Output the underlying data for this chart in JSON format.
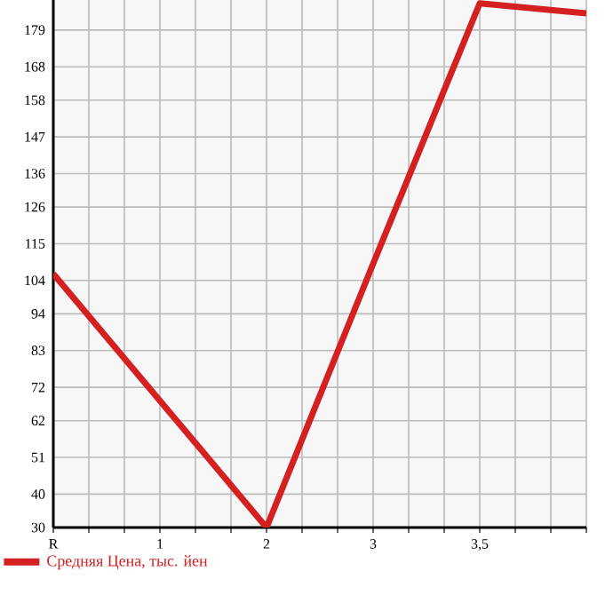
{
  "chart_data": {
    "type": "line",
    "categories": [
      "R",
      "1",
      "2",
      "3",
      "3,5",
      null
    ],
    "series": [
      {
        "name": "Средняя Цена, тыс. йен",
        "color": "#d42020",
        "values": [
          106,
          68,
          30,
          109,
          187,
          184
        ]
      }
    ],
    "ylim": [
      30,
      188
    ],
    "yticks": [
      30,
      40,
      51,
      62,
      72,
      83,
      94,
      104,
      115,
      126,
      136,
      147,
      158,
      168,
      179
    ],
    "grid": true,
    "legend": "bottom left",
    "marker": "none",
    "line_style": "solid"
  }
}
